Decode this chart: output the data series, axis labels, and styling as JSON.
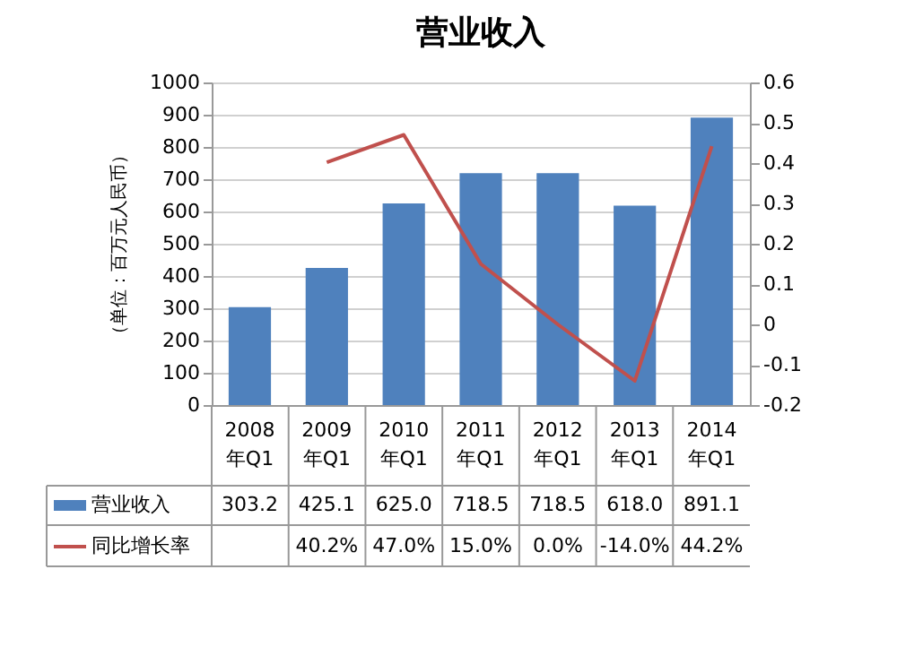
{
  "chart_data": {
    "type": "bar",
    "title": "营业收入",
    "ylabel": "（单位：百万元人民币）",
    "categories": [
      "2008 年Q1",
      "2009 年Q1",
      "2010 年Q1",
      "2011 年Q1",
      "2012 年Q1",
      "2013 年Q1",
      "2014 年Q1"
    ],
    "series": [
      {
        "name": "营业收入",
        "type": "bar",
        "color": "#4f81bd",
        "values": [
          303.2,
          425.1,
          625.0,
          718.5,
          718.5,
          618.0,
          891.1
        ],
        "value_labels": [
          "303.2",
          "425.1",
          "625.0",
          "718.5",
          "718.5",
          "618.0",
          "891.1"
        ]
      },
      {
        "name": "同比增长率",
        "type": "line",
        "axis": "y2",
        "color": "#c0504d",
        "values": [
          null,
          0.402,
          0.47,
          0.15,
          0.0,
          -0.14,
          0.442
        ],
        "value_labels": [
          null,
          "40.2%",
          "47.0%",
          "15.0%",
          "0.0%",
          "-14.0%",
          "44.2%"
        ]
      }
    ],
    "ylim": [
      0,
      1000
    ],
    "yticks": [
      0,
      100,
      200,
      300,
      400,
      500,
      600,
      700,
      800,
      900,
      {
        "value": 1000,
        "label": "1000"
      }
    ],
    "y2lim": [
      -0.2,
      0.6
    ],
    "y2ticks": [
      -0.2,
      -0.1,
      0,
      0.1,
      0.2,
      0.3,
      0.4,
      0.5,
      0.6
    ],
    "grid": "y",
    "legend": "bottom"
  }
}
